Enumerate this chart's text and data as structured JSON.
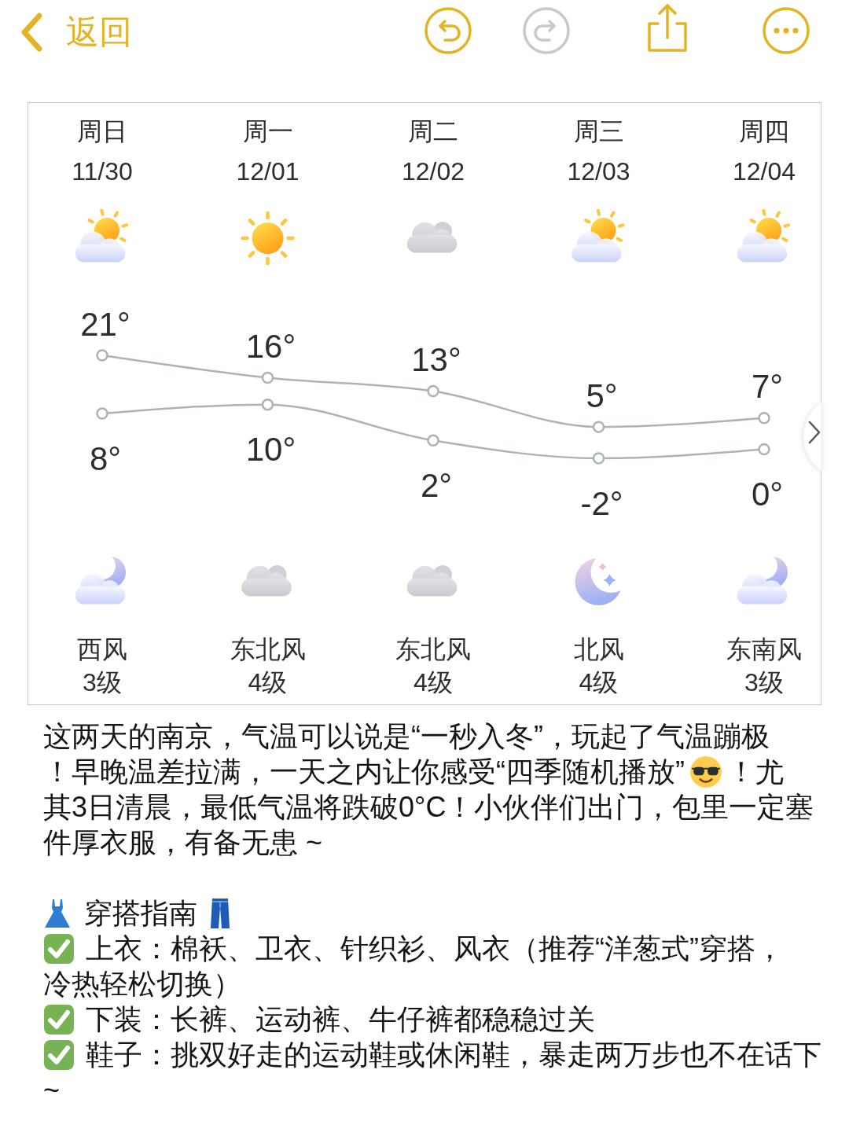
{
  "chart_data": {
    "type": "line",
    "categories": [
      "周日\n11/30",
      "周一\n12/01",
      "周二\n12/02",
      "周三\n12/03",
      "周四\n12/04"
    ],
    "series": [
      {
        "color": "#aab4b8",
        "values": [
          21,
          16,
          13,
          5,
          7
        ],
        "value_labels": [
          "21°",
          "16°",
          "13°",
          "5°",
          "7°"
        ]
      },
      {
        "color": "#aab4b8",
        "values": [
          8,
          10,
          2,
          -2,
          0
        ],
        "value_labels": [
          "8°",
          "10°",
          "2°",
          "-2°",
          "0°"
        ]
      }
    ],
    "marker": "circle",
    "line_style": "solid",
    "tick_labels": "x",
    "annotations": [
      "返回",
      "西风\n3级",
      "东北风\n4级",
      "东北风\n4级",
      "北风\n4级",
      "东南风\n3级",
      "这两天的南京，气温可以说是“一秒入冬”，玩起了气温蹦极",
      "！早晚温差拉满，一天之内让你感受“四季随机播放”",
      "！尤",
      "其3日清晨，最低气温将跌破0°C！小伙伴们出门，包里一定塞",
      "件厚衣服，有备无患 ~",
      "穿搭指南",
      "上衣：棉袄、卫衣、针织衫、风衣（推荐“洋葱式”穿搭，",
      "冷热轻松切换）",
      "下装：长裤、运动裤、牛仔裤都稳稳过关",
      "鞋子：挑双好走的运动鞋或休闲鞋，暴走两万步也不在话下",
      "~"
    ]
  }
}
